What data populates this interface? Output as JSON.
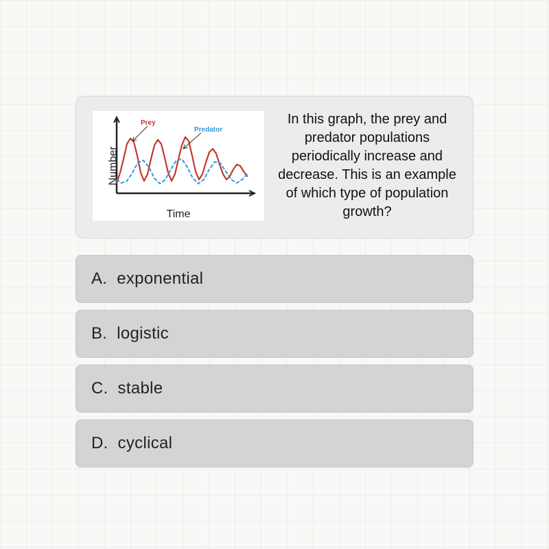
{
  "question": {
    "text": "In this graph, the prey and predator populations periodically increase and decrease. This is an example of which type of population growth?",
    "chart": {
      "type": "line",
      "x_label": "Time",
      "y_label": "Number",
      "background_color": "#ffffff",
      "axis_color": "#222222",
      "series": [
        {
          "name": "Prey",
          "label": "Prey",
          "color": "#c0392b",
          "dash": "none",
          "stroke_width": 2.2,
          "label_pos": {
            "x": 70,
            "y": 12
          },
          "arrow_to": {
            "x": 58,
            "y": 44
          },
          "points": [
            [
              35,
              105
            ],
            [
              40,
              90
            ],
            [
              45,
              70
            ],
            [
              50,
              48
            ],
            [
              55,
              40
            ],
            [
              60,
              45
            ],
            [
              65,
              65
            ],
            [
              70,
              90
            ],
            [
              75,
              102
            ],
            [
              80,
              92
            ],
            [
              85,
              70
            ],
            [
              90,
              50
            ],
            [
              95,
              42
            ],
            [
              100,
              48
            ],
            [
              105,
              68
            ],
            [
              110,
              90
            ],
            [
              115,
              102
            ],
            [
              120,
              92
            ],
            [
              125,
              70
            ],
            [
              130,
              50
            ],
            [
              135,
              38
            ],
            [
              140,
              44
            ],
            [
              145,
              65
            ],
            [
              150,
              88
            ],
            [
              155,
              100
            ],
            [
              160,
              92
            ],
            [
              165,
              75
            ],
            [
              170,
              60
            ],
            [
              175,
              55
            ],
            [
              180,
              62
            ],
            [
              185,
              78
            ],
            [
              190,
              92
            ],
            [
              195,
              100
            ],
            [
              200,
              95
            ],
            [
              205,
              85
            ],
            [
              210,
              78
            ],
            [
              215,
              80
            ],
            [
              220,
              88
            ],
            [
              225,
              95
            ]
          ]
        },
        {
          "name": "Predator",
          "label": "Predator",
          "color": "#3498db",
          "dash": "4 4",
          "stroke_width": 2.0,
          "label_pos": {
            "x": 148,
            "y": 22
          },
          "arrow_to": {
            "x": 132,
            "y": 55
          },
          "points": [
            [
              35,
              100
            ],
            [
              42,
              105
            ],
            [
              50,
              102
            ],
            [
              58,
              90
            ],
            [
              66,
              75
            ],
            [
              74,
              72
            ],
            [
              82,
              82
            ],
            [
              90,
              98
            ],
            [
              98,
              106
            ],
            [
              106,
              100
            ],
            [
              114,
              85
            ],
            [
              122,
              72
            ],
            [
              130,
              70
            ],
            [
              138,
              82
            ],
            [
              146,
              98
            ],
            [
              154,
              106
            ],
            [
              162,
              100
            ],
            [
              170,
              85
            ],
            [
              178,
              74
            ],
            [
              186,
              76
            ],
            [
              194,
              88
            ],
            [
              202,
              100
            ],
            [
              210,
              105
            ],
            [
              218,
              100
            ],
            [
              225,
              92
            ]
          ]
        }
      ]
    }
  },
  "options": [
    {
      "letter": "A.",
      "text": "exponential"
    },
    {
      "letter": "B.",
      "text": "logistic"
    },
    {
      "letter": "C.",
      "text": "stable"
    },
    {
      "letter": "D.",
      "text": "cyclical"
    }
  ],
  "styles": {
    "page_bg": "#f8f8f6",
    "grid_color": "#ededea",
    "card_bg": "#ececec",
    "option_bg": "#d4d4d4"
  }
}
